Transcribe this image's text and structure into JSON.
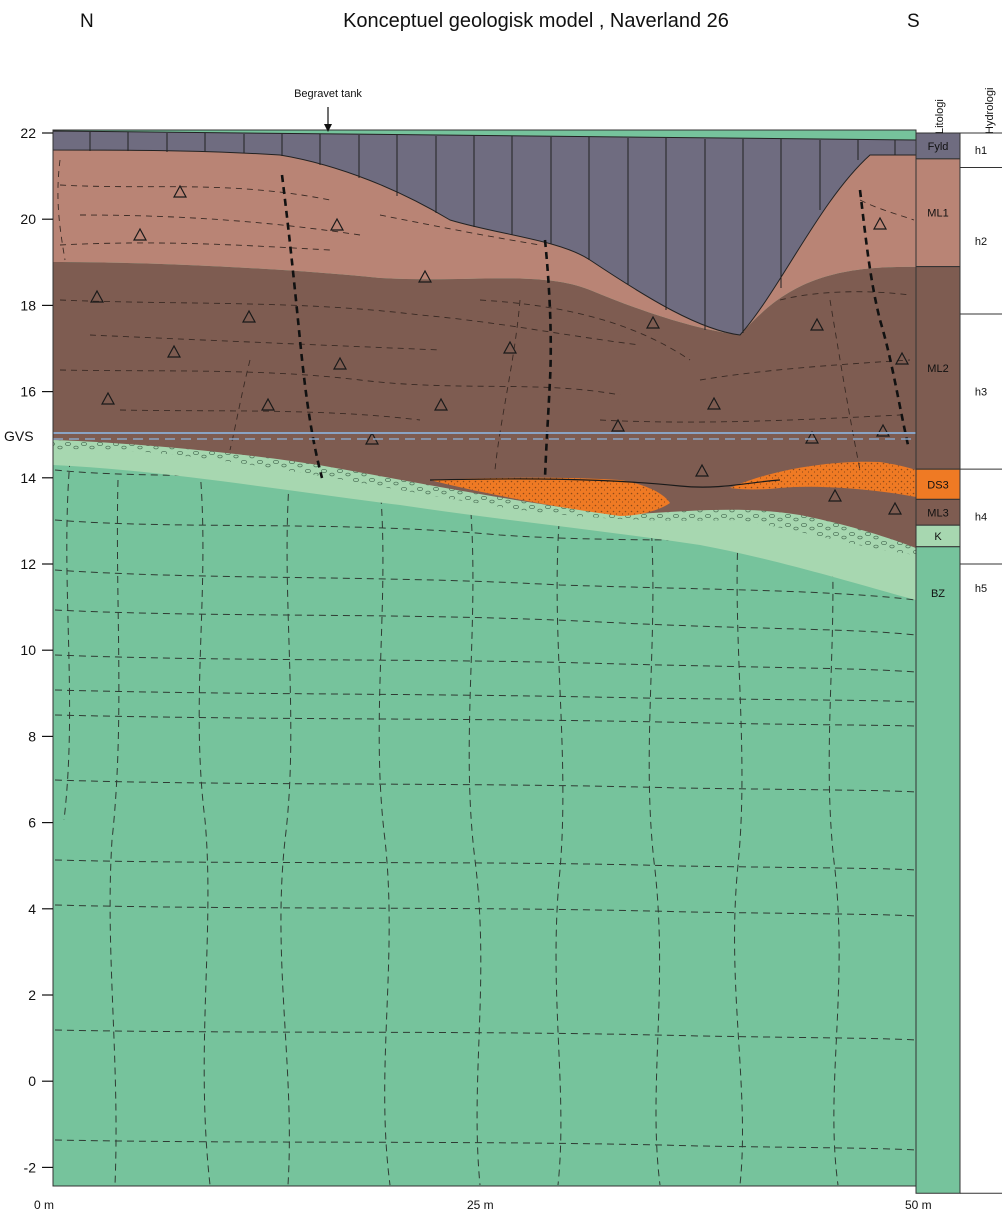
{
  "header": {
    "title": "Konceptuel geologisk model , Naverland 26",
    "north": "N",
    "south": "S"
  },
  "annotation": {
    "tank_label": "Begravet tank"
  },
  "gvs_label": "GVS",
  "y_axis": {
    "ticks": [
      22,
      20,
      18,
      16,
      14,
      12,
      10,
      8,
      6,
      4,
      2,
      0,
      -2
    ],
    "range": [
      -2.6,
      22.1
    ],
    "gvs_level": 14.95
  },
  "x_axis": {
    "labels": [
      "0 m",
      "25 m",
      "50 m"
    ],
    "range_m": [
      0,
      50
    ]
  },
  "columns": {
    "lithology_header": "Litologi",
    "hydrology_header": "Hydrologi",
    "lithology": [
      {
        "label": "Fyld",
        "top": 22.0,
        "bottom": 21.4,
        "color": "#6f6c80"
      },
      {
        "label": "ML1",
        "top": 21.4,
        "bottom": 18.9,
        "color": "#b98475"
      },
      {
        "label": "ML2",
        "top": 18.9,
        "bottom": 14.2,
        "color": "#7e5c51"
      },
      {
        "label": "DS3",
        "top": 14.2,
        "bottom": 13.5,
        "color": "#ef7a24"
      },
      {
        "label": "ML3",
        "top": 13.5,
        "bottom": 12.9,
        "color": "#7e5c51"
      },
      {
        "label": "K",
        "top": 12.9,
        "bottom": 12.4,
        "color": "#a7d7b0"
      },
      {
        "label": "BZ",
        "top": 12.4,
        "bottom": -2.6,
        "color": "#76c39c"
      }
    ],
    "hydrology": [
      {
        "label": "h1",
        "top": 22.0,
        "bottom": 21.2
      },
      {
        "label": "h2",
        "top": 21.2,
        "bottom": 17.8
      },
      {
        "label": "h3",
        "top": 17.8,
        "bottom": 14.2
      },
      {
        "label": "h4",
        "top": 14.2,
        "bottom": 12.0
      },
      {
        "label": "h5",
        "top": 12.0,
        "bottom": -2.6
      }
    ]
  },
  "colors": {
    "fill": "#6f6c80",
    "ml1": "#b98475",
    "ml2": "#7e5c51",
    "ds3": "#ef7a24",
    "gravel": "#a7d7b0",
    "bz": "#76c39c",
    "gvs_line": "#8aa3c4"
  }
}
